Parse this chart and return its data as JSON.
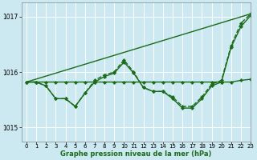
{
  "xlabel": "Graphe pression niveau de la mer (hPa)",
  "bg_color": "#cce8f0",
  "grid_color": "#ffffff",
  "line_color": "#1a6b1a",
  "xlim": [
    -0.5,
    23
  ],
  "ylim": [
    1014.75,
    1017.25
  ],
  "yticks": [
    1015,
    1016,
    1017
  ],
  "xticks": [
    0,
    1,
    2,
    3,
    4,
    5,
    6,
    7,
    8,
    9,
    10,
    11,
    12,
    13,
    14,
    15,
    16,
    17,
    18,
    19,
    20,
    21,
    22,
    23
  ],
  "series": [
    {
      "x": [
        0,
        23
      ],
      "y": [
        1015.82,
        1017.05
      ],
      "marker": null,
      "markersize": 0,
      "linewidth": 1.0,
      "linestyle": "-"
    },
    {
      "x": [
        0,
        1,
        2,
        3,
        4,
        5,
        6,
        7,
        8,
        9,
        10,
        11,
        12,
        13,
        14,
        15,
        16,
        17,
        18,
        19,
        20,
        21,
        22,
        23
      ],
      "y": [
        1015.82,
        1015.82,
        1015.82,
        1015.82,
        1015.82,
        1015.82,
        1015.82,
        1015.82,
        1015.82,
        1015.82,
        1015.82,
        1015.82,
        1015.82,
        1015.82,
        1015.82,
        1015.82,
        1015.82,
        1015.82,
        1015.82,
        1015.82,
        1015.82,
        1015.82,
        1015.85,
        1015.87
      ],
      "marker": "D",
      "markersize": 2.2,
      "linewidth": 1.0,
      "linestyle": "-"
    },
    {
      "x": [
        0,
        1,
        2,
        3,
        4,
        5,
        6,
        7,
        8,
        9,
        10,
        11,
        12,
        13,
        14,
        15,
        16,
        17,
        18,
        19,
        20,
        21,
        22,
        23
      ],
      "y": [
        1015.82,
        1015.82,
        1015.75,
        1015.52,
        1015.52,
        1015.38,
        1015.62,
        1015.82,
        1015.92,
        1015.98,
        1016.18,
        1015.98,
        1015.72,
        1015.65,
        1015.65,
        1015.52,
        1015.35,
        1015.35,
        1015.52,
        1015.75,
        1015.82,
        1016.45,
        1016.82,
        1017.02
      ],
      "marker": "D",
      "markersize": 2.2,
      "linewidth": 1.0,
      "linestyle": "-"
    },
    {
      "x": [
        0,
        1,
        2,
        3,
        4,
        5,
        6,
        7,
        8,
        9,
        10,
        11,
        12,
        13,
        14,
        15,
        16,
        17,
        18,
        19,
        20,
        21,
        22,
        23
      ],
      "y": [
        1015.82,
        1015.82,
        1015.75,
        1015.52,
        1015.52,
        1015.38,
        1015.62,
        1015.85,
        1015.95,
        1016.0,
        1016.22,
        1016.0,
        1015.72,
        1015.65,
        1015.65,
        1015.55,
        1015.38,
        1015.38,
        1015.55,
        1015.78,
        1015.85,
        1016.48,
        1016.88,
        1017.05
      ],
      "marker": "D",
      "markersize": 2.2,
      "linewidth": 1.0,
      "linestyle": "--"
    }
  ]
}
